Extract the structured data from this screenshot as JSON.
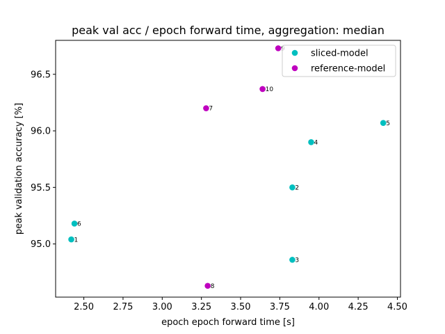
{
  "chart_data": {
    "type": "scatter",
    "title": "peak val acc / epoch forward time, aggregation: median",
    "xlabel": "epoch epoch forward time [s]",
    "ylabel": "peak validation accuracy [%]",
    "xlim": [
      2.32,
      4.52
    ],
    "ylim": [
      94.53,
      96.8
    ],
    "xticks": [
      2.5,
      2.75,
      3.0,
      3.25,
      3.5,
      3.75,
      4.0,
      4.25,
      4.5
    ],
    "xtick_labels": [
      "2.50",
      "2.75",
      "3.00",
      "3.25",
      "3.50",
      "3.75",
      "4.00",
      "4.25",
      "4.50"
    ],
    "yticks": [
      95.0,
      95.5,
      96.0,
      96.5
    ],
    "ytick_labels": [
      "95.0",
      "95.5",
      "96.0",
      "96.5"
    ],
    "grid": false,
    "legend_position": "top-right",
    "series": [
      {
        "name": "sliced-model",
        "color": "#00bfbf",
        "points": [
          {
            "x": 2.42,
            "y": 95.04,
            "label": "1"
          },
          {
            "x": 3.83,
            "y": 95.5,
            "label": "2"
          },
          {
            "x": 3.83,
            "y": 94.86,
            "label": "3"
          },
          {
            "x": 3.95,
            "y": 95.9,
            "label": "4"
          },
          {
            "x": 4.41,
            "y": 96.07,
            "label": "5"
          },
          {
            "x": 2.44,
            "y": 95.18,
            "label": "6"
          }
        ]
      },
      {
        "name": "reference-model",
        "color": "#bf00bf",
        "points": [
          {
            "x": 3.28,
            "y": 96.2,
            "label": "7"
          },
          {
            "x": 3.29,
            "y": 94.63,
            "label": "8"
          },
          {
            "x": 3.74,
            "y": 96.73,
            "label": "9"
          },
          {
            "x": 3.64,
            "y": 96.37,
            "label": "10"
          }
        ]
      }
    ]
  }
}
